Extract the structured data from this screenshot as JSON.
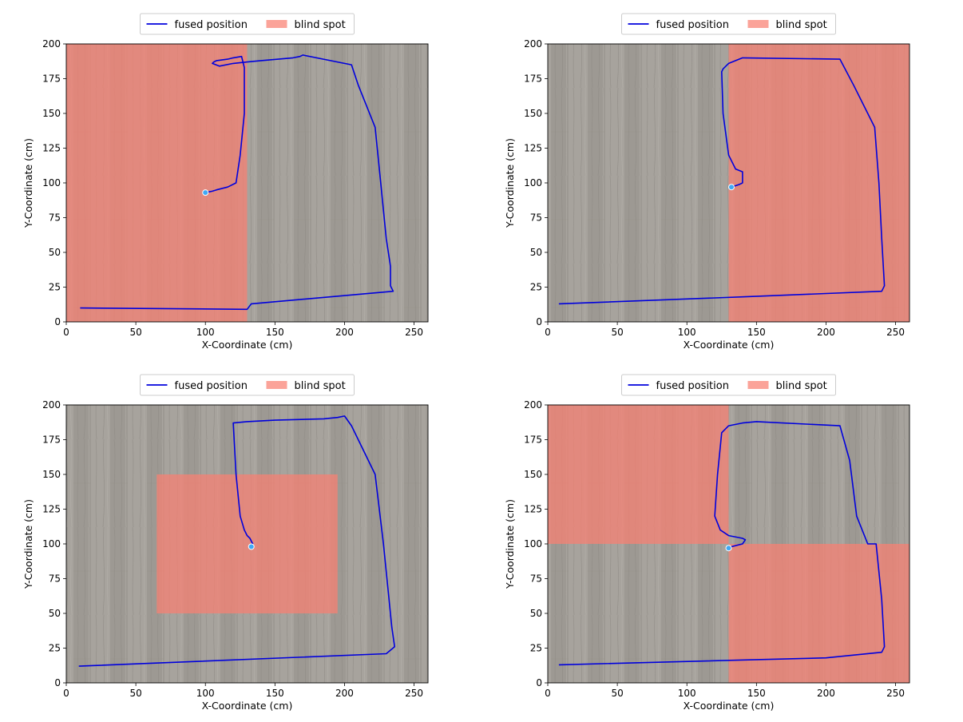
{
  "colors": {
    "line": "#0000dd",
    "blind_spot": "#fa8072",
    "floor": "#a7a39d"
  },
  "chart_data": [
    {
      "type": "line",
      "xlabel": "X-Coordinate (cm)",
      "ylabel": "Y-Coordinate (cm)",
      "xlim": [
        0,
        260
      ],
      "ylim": [
        0,
        200
      ],
      "xticks": [
        0,
        50,
        100,
        150,
        200,
        250
      ],
      "yticks": [
        0,
        25,
        50,
        75,
        100,
        125,
        150,
        175,
        200
      ],
      "legend": {
        "placement": "top-center",
        "line_label": "fused position",
        "patch_label": "blind spot"
      },
      "blind_spots": [
        [
          0,
          0,
          130,
          200
        ]
      ],
      "series": [
        {
          "name": "fused position",
          "x": [
            10,
            130,
            133,
            235,
            233,
            233,
            230,
            226,
            222,
            210,
            205,
            170,
            168,
            163,
            140,
            130,
            120,
            110,
            105,
            106,
            108,
            116,
            120,
            126,
            128,
            128,
            125,
            122,
            116,
            108,
            105,
            100
          ],
          "y": [
            10,
            9,
            13,
            22,
            26,
            40,
            60,
            100,
            140,
            170,
            185,
            192,
            191,
            190,
            188,
            187,
            186,
            184,
            186,
            187,
            188,
            189,
            190,
            191,
            183,
            150,
            120,
            100,
            97,
            95,
            94,
            93
          ]
        }
      ]
    },
    {
      "type": "line",
      "xlabel": "X-Coordinate (cm)",
      "ylabel": "Y-Coordinate (cm)",
      "xlim": [
        0,
        260
      ],
      "ylim": [
        0,
        200
      ],
      "xticks": [
        0,
        50,
        100,
        150,
        200,
        250
      ],
      "yticks": [
        0,
        25,
        50,
        75,
        100,
        125,
        150,
        175,
        200
      ],
      "legend": {
        "placement": "top-center",
        "line_label": "fused position",
        "patch_label": "blind spot"
      },
      "blind_spots": [
        [
          130,
          0,
          260,
          200
        ]
      ],
      "series": [
        {
          "name": "fused position",
          "x": [
            8,
            140,
            240,
            242,
            240,
            238,
            235,
            220,
            210,
            140,
            135,
            130,
            128,
            126,
            125,
            126,
            130,
            135,
            140,
            140,
            138,
            135,
            132
          ],
          "y": [
            13,
            18,
            22,
            26,
            60,
            100,
            140,
            170,
            189,
            190,
            188,
            186,
            184,
            182,
            180,
            150,
            120,
            110,
            108,
            100,
            99,
            98,
            97
          ]
        }
      ]
    },
    {
      "type": "line",
      "xlabel": "X-Coordinate (cm)",
      "ylabel": "Y-Coordinate (cm)",
      "xlim": [
        0,
        260
      ],
      "ylim": [
        0,
        200
      ],
      "xticks": [
        0,
        50,
        100,
        150,
        200,
        250
      ],
      "yticks": [
        0,
        25,
        50,
        75,
        100,
        125,
        150,
        175,
        200
      ],
      "legend": {
        "placement": "top-center",
        "line_label": "fused position",
        "patch_label": "blind spot"
      },
      "blind_spots": [
        [
          65,
          50,
          195,
          150
        ]
      ],
      "series": [
        {
          "name": "fused position",
          "x": [
            9,
            230,
            236,
            234,
            232,
            228,
            222,
            205,
            200,
            195,
            185,
            150,
            130,
            120,
            122,
            125,
            128,
            130,
            132,
            134,
            133
          ],
          "y": [
            12,
            21,
            26,
            40,
            60,
            100,
            150,
            185,
            192,
            191,
            190,
            189,
            188,
            187,
            150,
            120,
            110,
            106,
            104,
            100,
            98
          ]
        }
      ]
    },
    {
      "type": "line",
      "xlabel": "X-Coordinate (cm)",
      "ylabel": "Y-Coordinate (cm)",
      "xlim": [
        0,
        260
      ],
      "ylim": [
        0,
        200
      ],
      "xticks": [
        0,
        50,
        100,
        150,
        200,
        250
      ],
      "yticks": [
        0,
        25,
        50,
        75,
        100,
        125,
        150,
        175,
        200
      ],
      "legend": {
        "placement": "top-center",
        "line_label": "fused position",
        "patch_label": "blind spot"
      },
      "blind_spots": [
        [
          0,
          100,
          130,
          200
        ],
        [
          130,
          0,
          260,
          100
        ]
      ],
      "series": [
        {
          "name": "fused position",
          "x": [
            8,
            200,
            240,
            242,
            240,
            236,
            230,
            222,
            217,
            210,
            150,
            140,
            135,
            130,
            125,
            122,
            120,
            124,
            130,
            140,
            142,
            140,
            136,
            132,
            130
          ],
          "y": [
            13,
            18,
            22,
            26,
            60,
            100,
            100,
            120,
            160,
            185,
            188,
            187,
            186,
            185,
            180,
            150,
            120,
            110,
            106,
            104,
            103,
            100,
            99,
            98,
            97
          ]
        }
      ]
    }
  ]
}
